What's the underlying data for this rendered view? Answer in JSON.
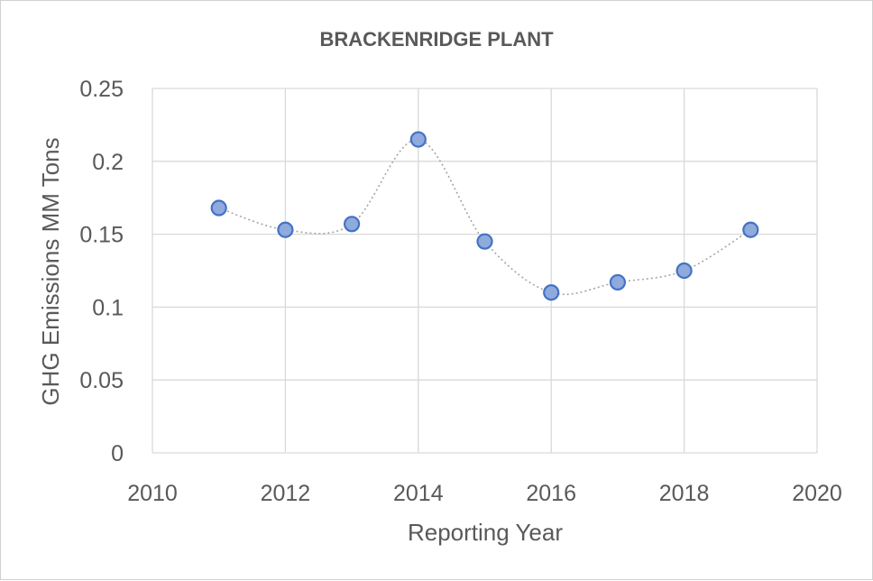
{
  "chart_data": {
    "type": "scatter",
    "title": "BRACKENRIDGE PLANT",
    "xlabel": "Reporting Year",
    "ylabel": "GHG Emissions MM Tons",
    "xlim": [
      2010,
      2020
    ],
    "ylim": [
      0,
      0.25
    ],
    "x_ticks": [
      2010,
      2012,
      2014,
      2016,
      2018,
      2020
    ],
    "y_ticks": [
      0,
      0.05,
      0.1,
      0.15,
      0.2,
      0.25
    ],
    "x_tick_labels": [
      "2010",
      "2012",
      "2014",
      "2016",
      "2018",
      "2020"
    ],
    "y_tick_labels": [
      "0",
      "0.05",
      "0.1",
      "0.15",
      "0.2",
      "0.25"
    ],
    "grid": true,
    "smoothed_line": true,
    "series": [
      {
        "name": "Brackenridge Plant",
        "x": [
          2011,
          2012,
          2013,
          2014,
          2015,
          2016,
          2017,
          2018,
          2019
        ],
        "y": [
          0.168,
          0.153,
          0.157,
          0.215,
          0.145,
          0.11,
          0.117,
          0.125,
          0.153
        ]
      }
    ],
    "colors": {
      "marker_fill": "#8faadc",
      "marker_edge": "#4472c4",
      "line": "#a6a6a6",
      "grid": "#d9d9d9",
      "text": "#595959"
    }
  }
}
